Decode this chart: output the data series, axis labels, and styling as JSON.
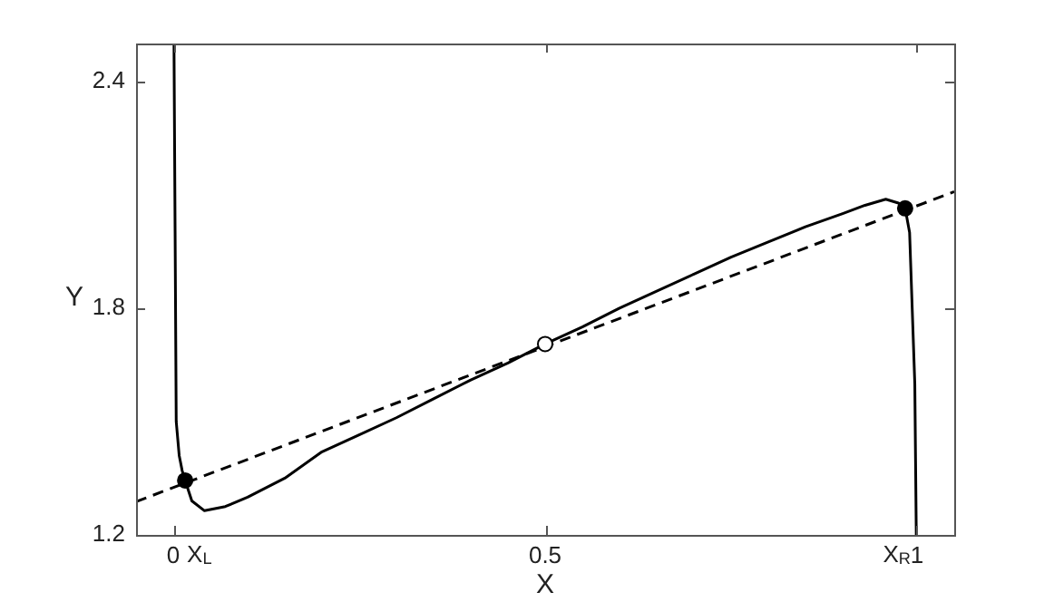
{
  "chart_data": {
    "type": "line",
    "xlabel": "X",
    "ylabel": "Y",
    "xlim": [
      -0.05,
      1.05
    ],
    "ylim": [
      1.2,
      2.5
    ],
    "xticks": [
      0,
      0.5,
      1
    ],
    "yticks": [
      1.2,
      1.8,
      2.4
    ],
    "grid": false,
    "legend": false,
    "annotations": [
      "X$_{L}$",
      "X$_{R}$"
    ],
    "series": [
      {
        "color": "#000000",
        "line_style": "solid",
        "marker": "none",
        "x": [
          0.001,
          0.004,
          0.008,
          0.012,
          0.016,
          0.025,
          0.042,
          0.07,
          0.1,
          0.15,
          0.2,
          0.25,
          0.3,
          0.35,
          0.4,
          0.45,
          0.5,
          0.55,
          0.6,
          0.65,
          0.7,
          0.75,
          0.8,
          0.85,
          0.9,
          0.93,
          0.958,
          0.975,
          0.984,
          0.99,
          0.997,
          0.999
        ],
        "values": [
          2.5,
          1.5,
          1.41,
          1.37,
          1.344,
          1.29,
          1.264,
          1.275,
          1.3,
          1.35,
          1.42,
          1.465,
          1.51,
          1.56,
          1.61,
          1.655,
          1.705,
          1.75,
          1.8,
          1.845,
          1.89,
          1.935,
          1.975,
          2.015,
          2.05,
          2.072,
          2.088,
          2.078,
          2.064,
          2.0,
          1.6,
          1.2
        ]
      },
      {
        "color": "#000000",
        "line_style": "dashed",
        "marker": "none",
        "x": [
          -0.05,
          1.05
        ],
        "values": [
          1.288,
          2.108
        ]
      },
      {
        "type": "scatter",
        "color": "#000000",
        "marker": "circle",
        "x": [
          0.016,
          0.984
        ],
        "values": [
          1.344,
          2.064
        ]
      },
      {
        "type": "scatter",
        "color": "#ffffff",
        "marker": "circle",
        "x": [
          0.5
        ],
        "values": [
          1.705
        ]
      }
    ]
  }
}
